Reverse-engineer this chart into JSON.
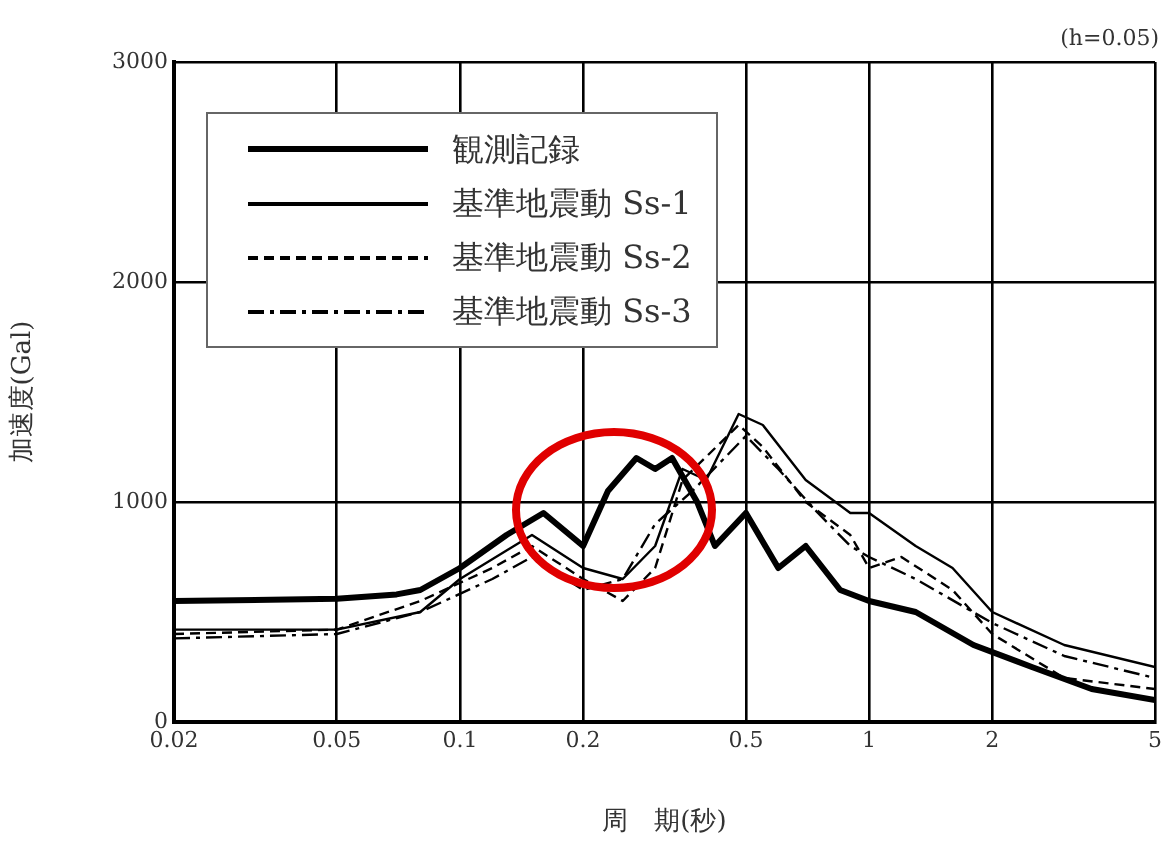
{
  "chart_data": {
    "type": "line",
    "xlabel": "周　期(秒)",
    "ylabel": "加速度(Gal)",
    "annotations": [
      "(h=0.05)"
    ],
    "log": "x",
    "xlim": [
      0.02,
      5
    ],
    "xticks": [
      0.02,
      0.05,
      0.1,
      0.2,
      0.5,
      1,
      2,
      5
    ],
    "ylim": [
      0,
      3000
    ],
    "yticks": [
      0,
      1000,
      2000,
      3000
    ],
    "grid": true,
    "legend": "top left",
    "marker": "none",
    "series": [
      {
        "name": "観測記録",
        "color": "#000000",
        "line_style": "solid",
        "x": [
          0.02,
          0.05,
          0.07,
          0.08,
          0.1,
          0.13,
          0.16,
          0.2,
          0.23,
          0.27,
          0.3,
          0.33,
          0.38,
          0.42,
          0.5,
          0.6,
          0.7,
          0.85,
          1,
          1.3,
          1.8,
          2.5,
          3.5,
          5
        ],
        "values": [
          550,
          560,
          580,
          600,
          700,
          850,
          950,
          800,
          1050,
          1200,
          1150,
          1200,
          1000,
          800,
          950,
          700,
          800,
          600,
          550,
          500,
          350,
          250,
          150,
          100
        ]
      },
      {
        "name": "基準地震動 Ss-1",
        "color": "#000000",
        "line_style": "solid",
        "x": [
          0.02,
          0.05,
          0.08,
          0.1,
          0.15,
          0.2,
          0.25,
          0.3,
          0.35,
          0.4,
          0.48,
          0.55,
          0.7,
          0.9,
          1,
          1.3,
          1.6,
          2,
          3,
          5
        ],
        "values": [
          420,
          420,
          500,
          650,
          850,
          700,
          650,
          800,
          1150,
          1100,
          1400,
          1350,
          1100,
          950,
          950,
          800,
          700,
          500,
          350,
          250
        ]
      },
      {
        "name": "基準地震動 Ss-2",
        "color": "#000000",
        "line_style": "dashed",
        "x": [
          0.02,
          0.05,
          0.08,
          0.12,
          0.15,
          0.2,
          0.25,
          0.3,
          0.35,
          0.48,
          0.55,
          0.7,
          0.9,
          1,
          1.2,
          1.6,
          2,
          3,
          5
        ],
        "values": [
          400,
          420,
          550,
          700,
          800,
          650,
          550,
          700,
          1100,
          1350,
          1250,
          1000,
          850,
          700,
          750,
          600,
          400,
          200,
          150
        ]
      },
      {
        "name": "基準地震動 Ss-3",
        "color": "#000000",
        "line_style": "dashdot",
        "x": [
          0.02,
          0.05,
          0.08,
          0.12,
          0.15,
          0.2,
          0.25,
          0.3,
          0.37,
          0.5,
          0.6,
          0.75,
          0.9,
          1,
          1.3,
          2,
          3,
          5
        ],
        "values": [
          380,
          400,
          500,
          650,
          750,
          600,
          650,
          900,
          1050,
          1300,
          1150,
          950,
          800,
          750,
          650,
          450,
          300,
          200
        ]
      }
    ]
  }
}
